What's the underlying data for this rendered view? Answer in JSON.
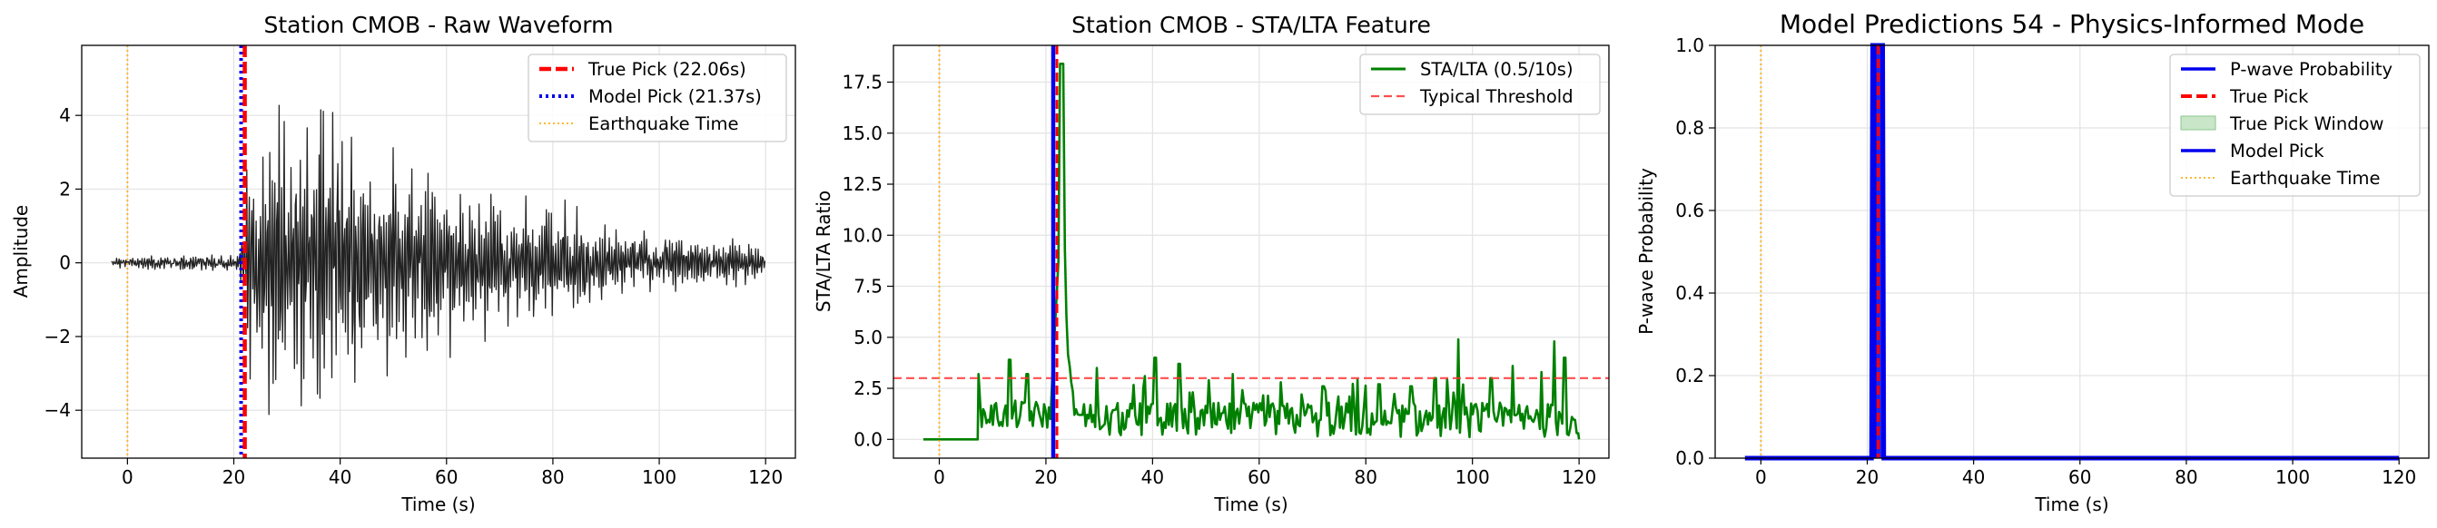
{
  "colors": {
    "waveform": "#222222",
    "true_pick": "#ff0000",
    "model_pick": "#0000ee",
    "earthquake": "#ffa500",
    "stalta": "#008000",
    "threshold": "#ff3030",
    "prob": "#0000ee",
    "window_fill": "#c9e6c9",
    "grid": "#e3e3e3"
  },
  "chart_data": [
    {
      "type": "line",
      "title": "Station CMOB - Raw Waveform",
      "xlabel": "Time (s)",
      "ylabel": "Amplitude",
      "xlim": [
        -8.6,
        125.6
      ],
      "ylim": [
        -5.3,
        5.9
      ],
      "xticks": [
        0,
        20,
        40,
        60,
        80,
        100,
        120
      ],
      "yticks": [
        -4,
        -2,
        0,
        2,
        4
      ],
      "grid": true,
      "legend": "top-right",
      "legend_entries": [
        "True Pick (22.06s)",
        "Model Pick (21.37s)",
        "Earthquake Time"
      ],
      "true_pick": 22.06,
      "model_pick": 21.37,
      "earthquake_time": 0,
      "waveform": {
        "t_start": -3,
        "t_end": 120,
        "onset": 21.4,
        "env_points": [
          [
            -3,
            0.15
          ],
          [
            10,
            0.22
          ],
          [
            21,
            0.25
          ],
          [
            22,
            2.6
          ],
          [
            24,
            3.9
          ],
          [
            30,
            4.3
          ],
          [
            34,
            4.8
          ],
          [
            40,
            4.5
          ],
          [
            45,
            3.6
          ],
          [
            50,
            3.1
          ],
          [
            55,
            4.0
          ],
          [
            60,
            2.8
          ],
          [
            70,
            2.2
          ],
          [
            80,
            1.9
          ],
          [
            90,
            1.3
          ],
          [
            100,
            0.9
          ],
          [
            110,
            0.75
          ],
          [
            117,
            0.7
          ],
          [
            120,
            0.3
          ]
        ]
      }
    },
    {
      "type": "line",
      "title": "Station CMOB - STA/LTA Feature",
      "xlabel": "Time (s)",
      "ylabel": "STA/LTA Ratio",
      "xlim": [
        -8.6,
        125.6
      ],
      "ylim": [
        -0.92,
        19.3
      ],
      "xticks": [
        0,
        20,
        40,
        60,
        80,
        100,
        120
      ],
      "yticks": [
        0.0,
        2.5,
        5.0,
        7.5,
        10.0,
        12.5,
        15.0,
        17.5
      ],
      "ytick_labels": [
        "0.0",
        "2.5",
        "5.0",
        "7.5",
        "10.0",
        "12.5",
        "15.0",
        "17.5"
      ],
      "grid": true,
      "legend": "top-right",
      "legend_entries": [
        "STA/LTA (0.5/10s)",
        "Typical Threshold"
      ],
      "threshold": 3.0,
      "true_pick": 22.06,
      "model_pick": 21.37,
      "earthquake_time": 0,
      "series": {
        "flat_until": 7.2,
        "peak_t": 22.9,
        "peak_value": 18.4,
        "spikes": [
          [
            7.4,
            3.2
          ],
          [
            13.2,
            3.9
          ],
          [
            16.5,
            3.2
          ],
          [
            29.5,
            3.5
          ],
          [
            38.5,
            3.1
          ],
          [
            40.5,
            4.0
          ],
          [
            45,
            3.7
          ],
          [
            50.5,
            2.9
          ],
          [
            55,
            3.2
          ],
          [
            64,
            2.8
          ],
          [
            68,
            2.2
          ],
          [
            72,
            2.6
          ],
          [
            77,
            2.1
          ],
          [
            82.5,
            2.7
          ],
          [
            88.5,
            2.6
          ],
          [
            93,
            3.0
          ],
          [
            97.3,
            4.9
          ],
          [
            103.5,
            3.0
          ],
          [
            107.5,
            3.6
          ],
          [
            113,
            3.3
          ],
          [
            115.3,
            4.8
          ],
          [
            117.3,
            4.0
          ]
        ],
        "end_t": 120
      }
    },
    {
      "type": "line",
      "title": "Model Predictions 54 - Physics-Informed Mode",
      "xlabel": "Time (s)",
      "ylabel": "P-wave Probability",
      "xlim": [
        -8.6,
        125.6
      ],
      "ylim": [
        0.0,
        1.0
      ],
      "xticks": [
        0,
        20,
        40,
        60,
        80,
        100,
        120
      ],
      "yticks": [
        0.0,
        0.2,
        0.4,
        0.6,
        0.8,
        1.0
      ],
      "ytick_labels": [
        "0.0",
        "0.2",
        "0.4",
        "0.6",
        "0.8",
        "1.0"
      ],
      "grid": true,
      "legend": "top-right",
      "legend_entries": [
        "P-wave Probability",
        "True Pick",
        "True Pick Window",
        "Model Pick",
        "Earthquake Time"
      ],
      "true_pick": 22.06,
      "model_pick": 21.37,
      "earthquake_time": 0,
      "true_pick_window": [
        21.06,
        23.06
      ],
      "probability": [
        [
          -3,
          0
        ],
        [
          20.8,
          0
        ],
        [
          21.0,
          1.0
        ],
        [
          22.9,
          1.0
        ],
        [
          23.1,
          0
        ],
        [
          120,
          0
        ]
      ]
    }
  ]
}
